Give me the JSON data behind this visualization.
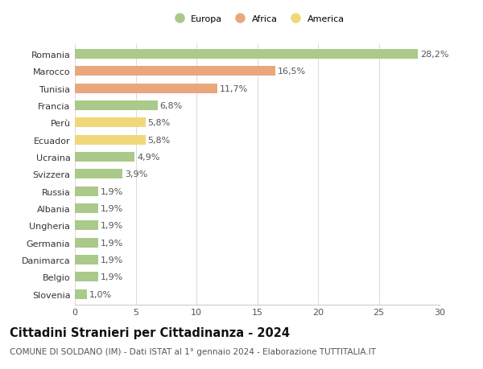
{
  "categories": [
    "Romania",
    "Marocco",
    "Tunisia",
    "Francia",
    "Perù",
    "Ecuador",
    "Ucraina",
    "Svizzera",
    "Russia",
    "Albania",
    "Ungheria",
    "Germania",
    "Danimarca",
    "Belgio",
    "Slovenia"
  ],
  "values": [
    28.2,
    16.5,
    11.7,
    6.8,
    5.8,
    5.8,
    4.9,
    3.9,
    1.9,
    1.9,
    1.9,
    1.9,
    1.9,
    1.9,
    1.0
  ],
  "labels": [
    "28,2%",
    "16,5%",
    "11,7%",
    "6,8%",
    "5,8%",
    "5,8%",
    "4,9%",
    "3,9%",
    "1,9%",
    "1,9%",
    "1,9%",
    "1,9%",
    "1,9%",
    "1,9%",
    "1,0%"
  ],
  "colors": [
    "#aac98a",
    "#e8a87c",
    "#e8a87c",
    "#aac98a",
    "#f0d878",
    "#f0d878",
    "#aac98a",
    "#aac98a",
    "#aac98a",
    "#aac98a",
    "#aac98a",
    "#aac98a",
    "#aac98a",
    "#aac98a",
    "#aac98a"
  ],
  "legend_labels": [
    "Europa",
    "Africa",
    "America"
  ],
  "legend_colors": [
    "#aac98a",
    "#e8a87c",
    "#f0d878"
  ],
  "title": "Cittadini Stranieri per Cittadinanza - 2024",
  "subtitle": "COMUNE DI SOLDANO (IM) - Dati ISTAT al 1° gennaio 2024 - Elaborazione TUTTITALIA.IT",
  "xlim": [
    0,
    30
  ],
  "xticks": [
    0,
    5,
    10,
    15,
    20,
    25,
    30
  ],
  "background_color": "#ffffff",
  "bar_height": 0.55,
  "label_fontsize": 8.0,
  "tick_fontsize": 8.0,
  "title_fontsize": 10.5,
  "subtitle_fontsize": 7.5
}
